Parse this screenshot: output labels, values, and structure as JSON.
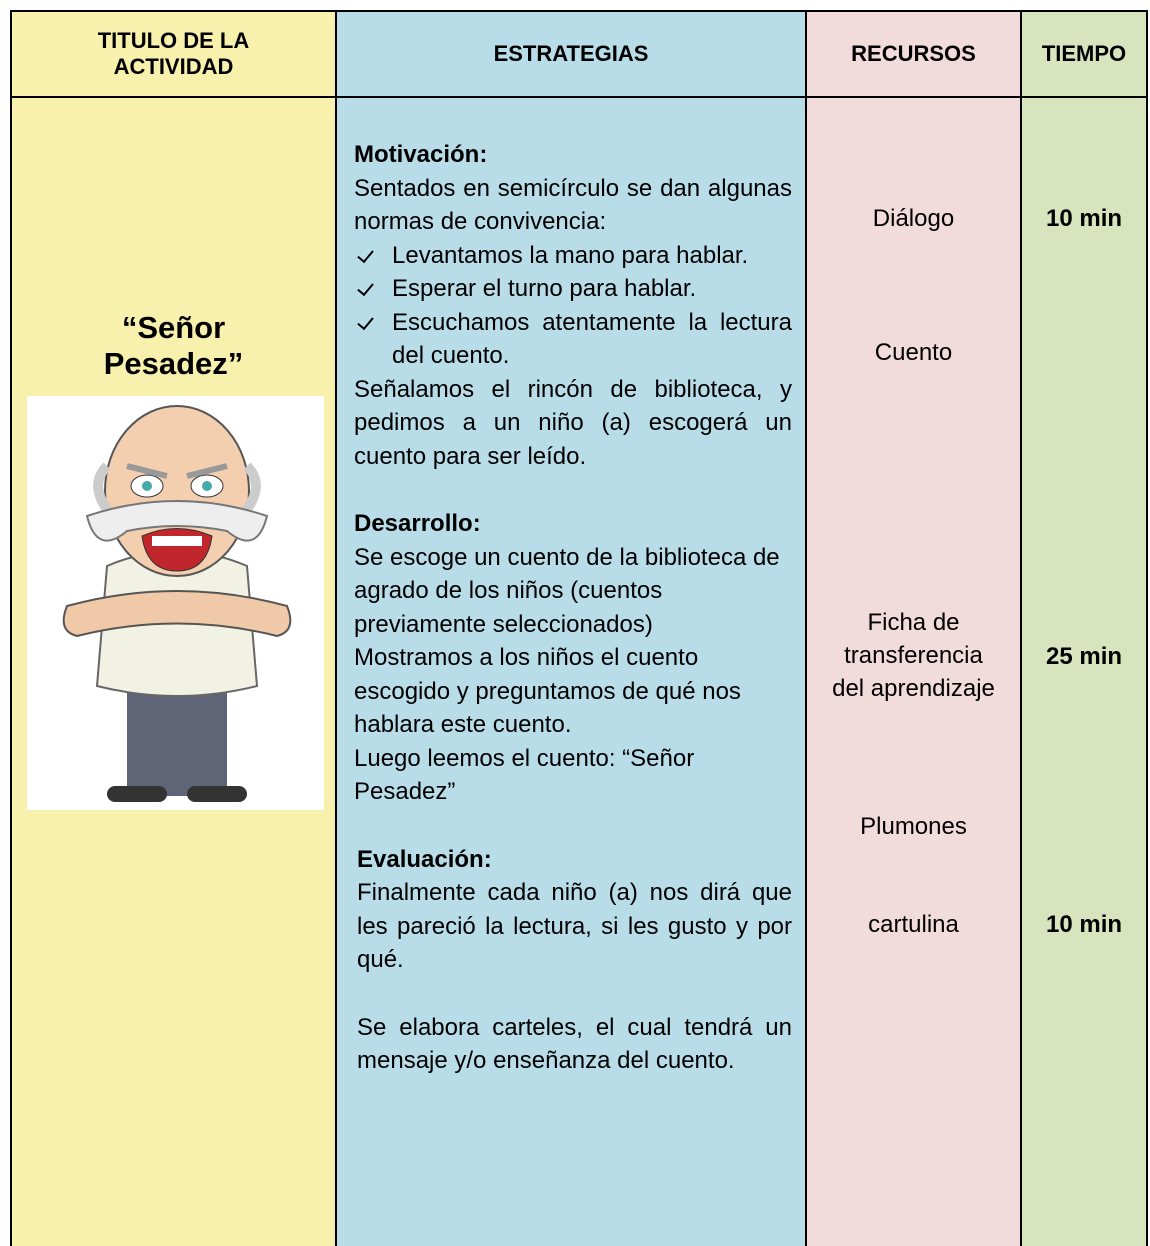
{
  "table": {
    "header": [
      "TITULO DE LA ACTIVIDAD",
      "ESTRATEGIAS",
      "RECURSOS",
      "TIEMPO"
    ],
    "title": "“Señor Pesadez”",
    "strategies": [
      {
        "heading": "Motivación:",
        "intro": "Sentados en semicírculo se dan algunas normas de convivencia:",
        "checklist": [
          "Levantamos la mano para hablar.",
          "Esperar el turno para hablar.",
          "Escuchamos atentamente la lectura del cuento."
        ],
        "paragraphs": [
          "Señalamos el rincón de biblioteca, y pedimos a un niño (a) escogerá un cuento para ser leído."
        ]
      },
      {
        "heading": "Desarrollo:",
        "paragraphs": [
          "Se escoge un cuento de la biblioteca de agrado de los niños (cuentos previamente seleccionados)",
          "Mostramos a los niños el cuento escogido y preguntamos de qué nos hablara este cuento.",
          "Luego leemos el cuento: “Señor Pesadez”"
        ]
      },
      {
        "heading": "Evaluación:",
        "paragraphs": [
          "Finalmente cada niño (a) nos dirá que les pareció la lectura, si les gusto y por qué.",
          "Se elabora carteles, el cual tendrá un mensaje y/o enseñanza del cuento."
        ]
      }
    ],
    "resources": [
      "Diálogo",
      "Cuento",
      "Ficha de transferencia del aprendizaje",
      "Plumones",
      "cartulina"
    ],
    "times": [
      "10 min",
      "25 min",
      "10 min"
    ]
  }
}
